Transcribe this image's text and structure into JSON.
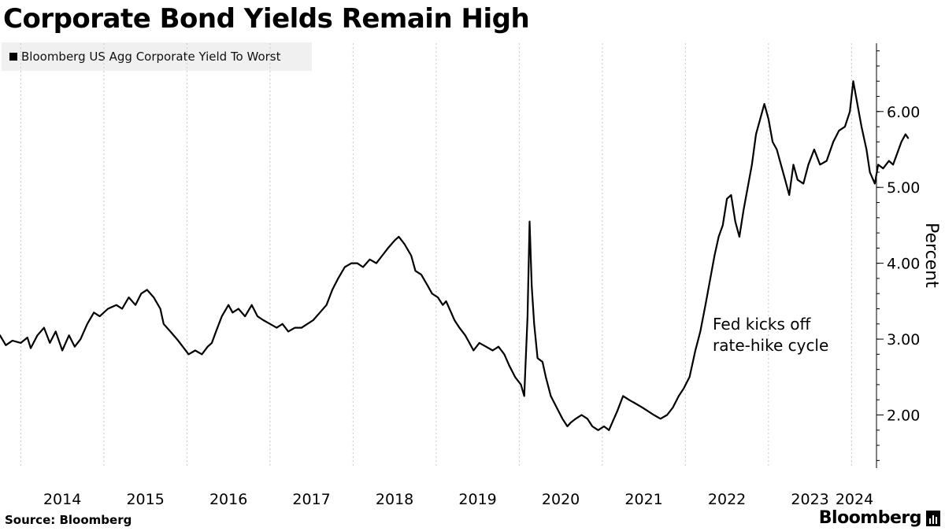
{
  "title": "Corporate Bond Yields Remain High",
  "legend_label": "Bloomberg US Agg Corporate Yield To Worst",
  "source": "Source: Bloomberg",
  "brand": "Bloomberg",
  "colors": {
    "line": "#000000",
    "grid": "#c8c8c8",
    "legend_bg": "#f0f0f0"
  },
  "chart_data": {
    "type": "line",
    "xlabel": "",
    "ylabel": "Percent",
    "xlim": [
      2013.75,
      2024.3
    ],
    "ylim": [
      1.3,
      6.9
    ],
    "y_ticks": [
      2.0,
      3.0,
      4.0,
      5.0,
      6.0
    ],
    "y_tick_labels": [
      "2.00",
      "3.00",
      "4.00",
      "5.00",
      "6.00"
    ],
    "x_tick_labels": [
      {
        "year": 2014,
        "label": "2014"
      },
      {
        "year": 2015,
        "label": "2015"
      },
      {
        "year": 2016,
        "label": "2016"
      },
      {
        "year": 2017,
        "label": "2017"
      },
      {
        "year": 2018,
        "label": "2018"
      },
      {
        "year": 2019,
        "label": "2019"
      },
      {
        "year": 2020,
        "label": "2020"
      },
      {
        "year": 2021,
        "label": "2021"
      },
      {
        "year": 2022,
        "label": "2022"
      },
      {
        "year": 2023,
        "label": "2023"
      },
      {
        "year": 2024,
        "label": "2024"
      }
    ],
    "grid": "vertical dotted at year boundaries",
    "legend": "top-left",
    "annotation": {
      "line1": "Fed kicks off",
      "line2": "rate-hike cycle",
      "x": 2022.15,
      "y": 3.02
    },
    "series": [
      {
        "name": "Bloomberg US Agg Corporate Yield To Worst",
        "points": [
          [
            2013.75,
            3.05
          ],
          [
            2013.82,
            2.92
          ],
          [
            2013.9,
            2.98
          ],
          [
            2014.0,
            2.95
          ],
          [
            2014.08,
            3.02
          ],
          [
            2014.12,
            2.88
          ],
          [
            2014.2,
            3.05
          ],
          [
            2014.28,
            3.15
          ],
          [
            2014.35,
            2.95
          ],
          [
            2014.42,
            3.1
          ],
          [
            2014.5,
            2.85
          ],
          [
            2014.58,
            3.05
          ],
          [
            2014.65,
            2.9
          ],
          [
            2014.72,
            3.0
          ],
          [
            2014.8,
            3.2
          ],
          [
            2014.88,
            3.35
          ],
          [
            2014.95,
            3.3
          ],
          [
            2015.05,
            3.4
          ],
          [
            2015.15,
            3.45
          ],
          [
            2015.22,
            3.4
          ],
          [
            2015.3,
            3.55
          ],
          [
            2015.38,
            3.45
          ],
          [
            2015.45,
            3.6
          ],
          [
            2015.52,
            3.65
          ],
          [
            2015.6,
            3.55
          ],
          [
            2015.68,
            3.4
          ],
          [
            2015.72,
            3.2
          ],
          [
            2015.8,
            3.1
          ],
          [
            2015.88,
            3.0
          ],
          [
            2015.95,
            2.9
          ],
          [
            2016.02,
            2.8
          ],
          [
            2016.1,
            2.85
          ],
          [
            2016.18,
            2.8
          ],
          [
            2016.25,
            2.9
          ],
          [
            2016.3,
            2.95
          ],
          [
            2016.35,
            3.1
          ],
          [
            2016.42,
            3.3
          ],
          [
            2016.5,
            3.45
          ],
          [
            2016.55,
            3.35
          ],
          [
            2016.62,
            3.4
          ],
          [
            2016.7,
            3.3
          ],
          [
            2016.78,
            3.45
          ],
          [
            2016.85,
            3.3
          ],
          [
            2016.92,
            3.25
          ],
          [
            2017.0,
            3.2
          ],
          [
            2017.08,
            3.15
          ],
          [
            2017.15,
            3.2
          ],
          [
            2017.22,
            3.1
          ],
          [
            2017.3,
            3.15
          ],
          [
            2017.38,
            3.15
          ],
          [
            2017.45,
            3.2
          ],
          [
            2017.52,
            3.25
          ],
          [
            2017.6,
            3.35
          ],
          [
            2017.68,
            3.45
          ],
          [
            2017.75,
            3.65
          ],
          [
            2017.82,
            3.8
          ],
          [
            2017.9,
            3.95
          ],
          [
            2017.98,
            4.0
          ],
          [
            2018.05,
            4.0
          ],
          [
            2018.12,
            3.95
          ],
          [
            2018.2,
            4.05
          ],
          [
            2018.28,
            4.0
          ],
          [
            2018.35,
            4.1
          ],
          [
            2018.42,
            4.2
          ],
          [
            2018.5,
            4.3
          ],
          [
            2018.55,
            4.35
          ],
          [
            2018.62,
            4.25
          ],
          [
            2018.7,
            4.1
          ],
          [
            2018.75,
            3.9
          ],
          [
            2018.82,
            3.85
          ],
          [
            2018.9,
            3.7
          ],
          [
            2018.95,
            3.6
          ],
          [
            2019.02,
            3.55
          ],
          [
            2019.08,
            3.45
          ],
          [
            2019.12,
            3.5
          ],
          [
            2019.18,
            3.35
          ],
          [
            2019.22,
            3.25
          ],
          [
            2019.28,
            3.15
          ],
          [
            2019.35,
            3.05
          ],
          [
            2019.4,
            2.95
          ],
          [
            2019.45,
            2.85
          ],
          [
            2019.52,
            2.95
          ],
          [
            2019.6,
            2.9
          ],
          [
            2019.68,
            2.85
          ],
          [
            2019.75,
            2.9
          ],
          [
            2019.82,
            2.8
          ],
          [
            2019.88,
            2.65
          ],
          [
            2019.95,
            2.5
          ],
          [
            2020.02,
            2.4
          ],
          [
            2020.06,
            2.25
          ],
          [
            2020.1,
            3.3
          ],
          [
            2020.125,
            4.55
          ],
          [
            2020.15,
            3.7
          ],
          [
            2020.18,
            3.2
          ],
          [
            2020.22,
            2.75
          ],
          [
            2020.28,
            2.7
          ],
          [
            2020.32,
            2.5
          ],
          [
            2020.38,
            2.25
          ],
          [
            2020.45,
            2.1
          ],
          [
            2020.52,
            1.95
          ],
          [
            2020.58,
            1.85
          ],
          [
            2020.62,
            1.9
          ],
          [
            2020.68,
            1.95
          ],
          [
            2020.75,
            2.0
          ],
          [
            2020.82,
            1.95
          ],
          [
            2020.88,
            1.85
          ],
          [
            2020.95,
            1.8
          ],
          [
            2021.02,
            1.85
          ],
          [
            2021.08,
            1.8
          ],
          [
            2021.12,
            1.9
          ],
          [
            2021.18,
            2.05
          ],
          [
            2021.25,
            2.25
          ],
          [
            2021.32,
            2.2
          ],
          [
            2021.4,
            2.15
          ],
          [
            2021.48,
            2.1
          ],
          [
            2021.55,
            2.05
          ],
          [
            2021.62,
            2.0
          ],
          [
            2021.7,
            1.95
          ],
          [
            2021.78,
            2.0
          ],
          [
            2021.85,
            2.1
          ],
          [
            2021.92,
            2.25
          ],
          [
            2021.98,
            2.35
          ],
          [
            2022.05,
            2.5
          ],
          [
            2022.12,
            2.85
          ],
          [
            2022.18,
            3.1
          ],
          [
            2022.25,
            3.5
          ],
          [
            2022.3,
            3.8
          ],
          [
            2022.35,
            4.1
          ],
          [
            2022.4,
            4.35
          ],
          [
            2022.45,
            4.5
          ],
          [
            2022.5,
            4.85
          ],
          [
            2022.55,
            4.9
          ],
          [
            2022.6,
            4.55
          ],
          [
            2022.65,
            4.35
          ],
          [
            2022.7,
            4.7
          ],
          [
            2022.75,
            5.0
          ],
          [
            2022.8,
            5.3
          ],
          [
            2022.85,
            5.7
          ],
          [
            2022.9,
            5.9
          ],
          [
            2022.95,
            6.1
          ],
          [
            2023.0,
            5.9
          ],
          [
            2023.05,
            5.6
          ],
          [
            2023.1,
            5.5
          ],
          [
            2023.15,
            5.3
          ],
          [
            2023.2,
            5.1
          ],
          [
            2023.25,
            4.9
          ],
          [
            2023.3,
            5.3
          ],
          [
            2023.35,
            5.1
          ],
          [
            2023.42,
            5.05
          ],
          [
            2023.48,
            5.3
          ],
          [
            2023.55,
            5.5
          ],
          [
            2023.62,
            5.3
          ],
          [
            2023.7,
            5.35
          ],
          [
            2023.78,
            5.6
          ],
          [
            2023.85,
            5.75
          ],
          [
            2023.92,
            5.8
          ],
          [
            2023.98,
            6.0
          ],
          [
            2024.02,
            6.4
          ],
          [
            2024.07,
            6.1
          ],
          [
            2024.12,
            5.8
          ],
          [
            2024.18,
            5.5
          ],
          [
            2024.22,
            5.2
          ],
          [
            2024.28,
            5.05
          ],
          [
            2024.32,
            5.3
          ],
          [
            2024.38,
            5.25
          ],
          [
            2024.45,
            5.35
          ],
          [
            2024.5,
            5.3
          ],
          [
            2024.55,
            5.45
          ],
          [
            2024.6,
            5.6
          ],
          [
            2024.65,
            5.7
          ],
          [
            2024.68,
            5.65
          ]
        ]
      }
    ]
  }
}
